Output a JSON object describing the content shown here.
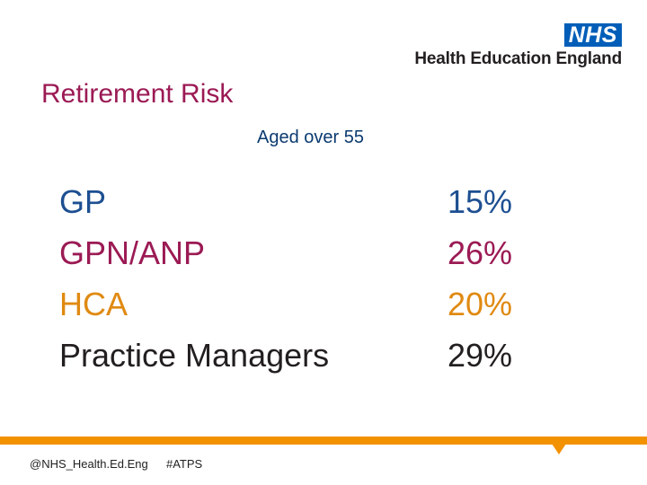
{
  "logo": {
    "nhs": "NHS",
    "org": "Health Education England",
    "color": "#005eb8"
  },
  "title": "Retirement Risk",
  "subtitle": "Aged over 55",
  "rows": [
    {
      "label": "GP",
      "value": "15%",
      "label_color": "#1d4f91",
      "value_color": "#1d4f91"
    },
    {
      "label": "GPN/ANP",
      "value": "26%",
      "label_color": "#9b1a54",
      "value_color": "#9b1a54"
    },
    {
      "label": "HCA",
      "value": "20%",
      "label_color": "#e08a12",
      "value_color": "#e08a12"
    },
    {
      "label": "Practice Managers",
      "value": "29%",
      "label_color": "#231f20",
      "value_color": "#231f20"
    }
  ],
  "footer": {
    "handle": "@NHS_Health.Ed.Eng",
    "hashtag": "#ATPS",
    "bar_color": "#f39200"
  }
}
